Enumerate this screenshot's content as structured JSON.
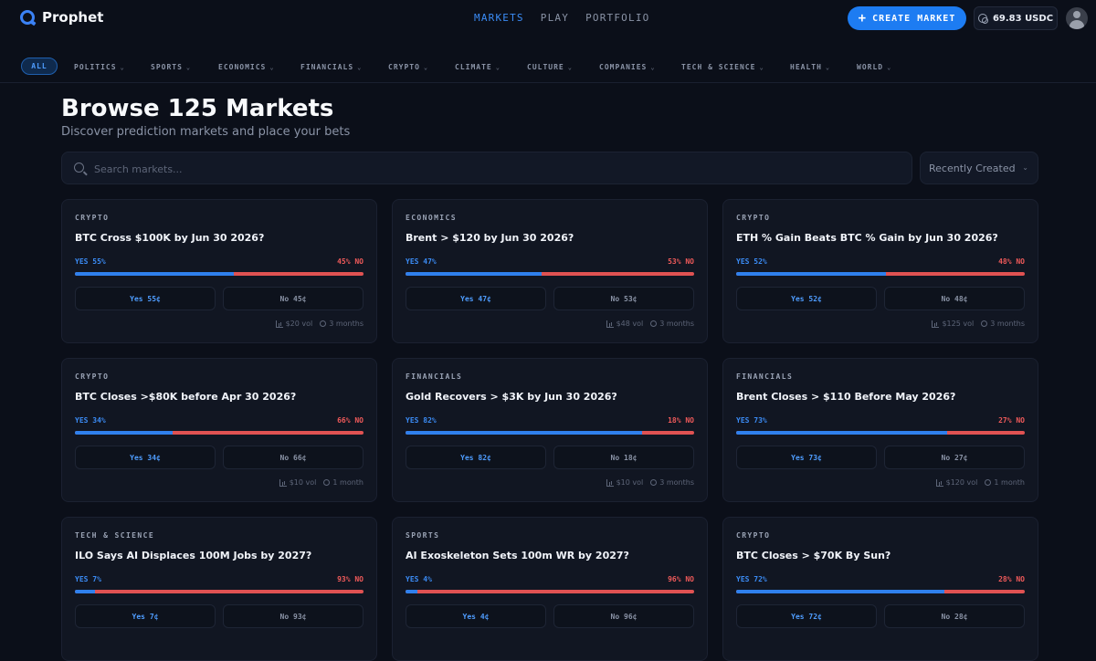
{
  "app": {
    "name": "Prophet"
  },
  "nav": {
    "items": [
      "MARKETS",
      "PLAY",
      "PORTFOLIO"
    ],
    "active": "MARKETS"
  },
  "header": {
    "create_label": "CREATE MARKET",
    "balance": "69.83 USDC"
  },
  "categories": {
    "all_label": "ALL",
    "items": [
      "POLITICS",
      "SPORTS",
      "ECONOMICS",
      "FINANCIALS",
      "CRYPTO",
      "CLIMATE",
      "CULTURE",
      "COMPANIES",
      "TECH & SCIENCE",
      "HEALTH",
      "WORLD"
    ]
  },
  "page": {
    "title": "Browse 125 Markets",
    "subtitle": "Discover prediction markets and place your bets",
    "search_placeholder": "Search markets...",
    "sort_label": "Recently Created"
  },
  "markets": [
    {
      "category": "CRYPTO",
      "title": "BTC Cross $100K by Jun 30 2026?",
      "yes": 55,
      "yes_label": "YES 55%",
      "no_label": "45% NO",
      "yes_btn": "Yes 55¢",
      "no_btn": "No 45¢",
      "vol": "$20 vol",
      "time": "3 months"
    },
    {
      "category": "ECONOMICS",
      "title": "Brent > $120 by Jun 30 2026?",
      "yes": 47,
      "yes_label": "YES 47%",
      "no_label": "53% NO",
      "yes_btn": "Yes 47¢",
      "no_btn": "No 53¢",
      "vol": "$48 vol",
      "time": "3 months"
    },
    {
      "category": "CRYPTO",
      "title": "ETH % Gain Beats BTC % Gain by Jun 30 2026?",
      "yes": 52,
      "yes_label": "YES 52%",
      "no_label": "48% NO",
      "yes_btn": "Yes 52¢",
      "no_btn": "No 48¢",
      "vol": "$125 vol",
      "time": "3 months"
    },
    {
      "category": "CRYPTO",
      "title": "BTC Closes >$80K before Apr 30 2026?",
      "yes": 34,
      "yes_label": "YES 34%",
      "no_label": "66% NO",
      "yes_btn": "Yes 34¢",
      "no_btn": "No 66¢",
      "vol": "$10 vol",
      "time": "1 month"
    },
    {
      "category": "FINANCIALS",
      "title": "Gold Recovers > $3K by Jun 30 2026?",
      "yes": 82,
      "yes_label": "YES 82%",
      "no_label": "18% NO",
      "yes_btn": "Yes 82¢",
      "no_btn": "No 18¢",
      "vol": "$10 vol",
      "time": "3 months"
    },
    {
      "category": "FINANCIALS",
      "title": "Brent Closes > $110 Before May 2026?",
      "yes": 73,
      "yes_label": "YES 73%",
      "no_label": "27% NO",
      "yes_btn": "Yes 73¢",
      "no_btn": "No 27¢",
      "vol": "$120 vol",
      "time": "1 month"
    },
    {
      "category": "TECH & SCIENCE",
      "title": "ILO Says AI Displaces 100M Jobs by 2027?",
      "yes": 7,
      "yes_label": "YES 7%",
      "no_label": "93% NO",
      "yes_btn": "Yes 7¢",
      "no_btn": "No 93¢",
      "vol": "",
      "time": ""
    },
    {
      "category": "SPORTS",
      "title": "AI Exoskeleton Sets 100m WR by 2027?",
      "yes": 4,
      "yes_label": "YES 4%",
      "no_label": "96% NO",
      "yes_btn": "Yes 4¢",
      "no_btn": "No 96¢",
      "vol": "",
      "time": ""
    },
    {
      "category": "CRYPTO",
      "title": "BTC Closes > $70K By Sun?",
      "yes": 72,
      "yes_label": "YES 72%",
      "no_label": "28% NO",
      "yes_btn": "Yes 72¢",
      "no_btn": "No 28¢",
      "vol": "",
      "time": ""
    }
  ]
}
